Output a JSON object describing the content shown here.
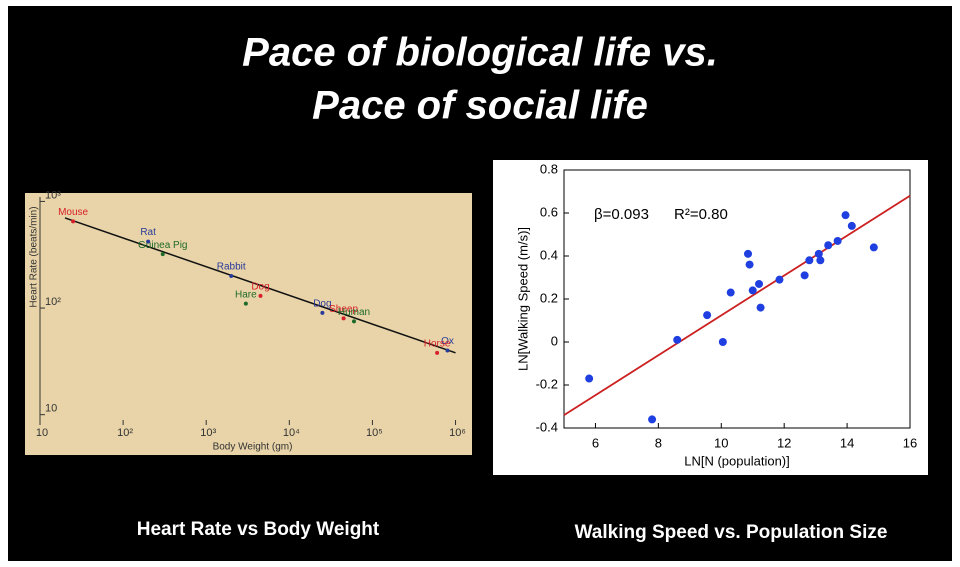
{
  "title": [
    "Pace of biological life vs.",
    "Pace of social life"
  ],
  "chart_data": [
    {
      "type": "scatter",
      "caption": "Heart Rate vs Body Weight",
      "xlabel": "Body Weight (gm)",
      "ylabel": "Heart Rate (beats/min)",
      "log_x": true,
      "log_y": true,
      "labels": [
        "Mouse",
        "Rat",
        "Guinea Pig",
        "Rabbit",
        "Dog",
        "Hare",
        "Dog",
        "Sheep",
        "Human",
        "Ox",
        "Horse"
      ],
      "x": [
        25,
        200,
        300,
        2000,
        4500,
        3000,
        25000,
        45000,
        60000,
        800000,
        600000
      ],
      "y": [
        650,
        420,
        320,
        200,
        130,
        110,
        90,
        80,
        75,
        40,
        38
      ],
      "colors": [
        "#d8202a",
        "#2a3a9a",
        "#1f6a2a",
        "#2a3a9a",
        "#d8202a",
        "#1f6a2a",
        "#2a3a9a",
        "#d8202a",
        "#1f6a2a",
        "#2a3a9a",
        "#d8202a"
      ],
      "trend": {
        "x": [
          20,
          1000000
        ],
        "y": [
          700,
          38
        ]
      },
      "trend_color": "#111",
      "xlim": [
        10,
        1300000
      ],
      "ylim": [
        8,
        1100
      ],
      "xticks": [
        {
          "value": 10,
          "label": "10"
        },
        {
          "value": 100,
          "label": "10²"
        },
        {
          "value": 1000,
          "label": "10³"
        },
        {
          "value": 10000,
          "label": "10⁴"
        },
        {
          "value": 100000,
          "label": "10⁵"
        },
        {
          "value": 1000000,
          "label": "10⁶"
        }
      ],
      "yticks": [
        {
          "value": 10,
          "label": "10"
        },
        {
          "value": 100,
          "label": "10²"
        },
        {
          "value": 1000,
          "label": "10³"
        }
      ]
    },
    {
      "type": "scatter",
      "caption": "Walking Speed vs. Population Size",
      "xlabel": "LN[N (population)]",
      "ylabel": "LN[Walking Speed (m/s)]",
      "annotations": [
        "β=0.093",
        "R²=0.80"
      ],
      "color": "#1f3fe0",
      "x": [
        5.8,
        7.8,
        8.6,
        9.55,
        10.05,
        10.3,
        10.85,
        10.9,
        11.0,
        11.2,
        11.25,
        11.85,
        12.65,
        12.8,
        13.1,
        13.15,
        13.4,
        13.7,
        13.95,
        14.15,
        14.85
      ],
      "y": [
        -0.17,
        -0.36,
        0.01,
        0.125,
        0.0,
        0.23,
        0.41,
        0.36,
        0.24,
        0.27,
        0.16,
        0.29,
        0.31,
        0.38,
        0.41,
        0.38,
        0.45,
        0.47,
        0.59,
        0.54,
        0.44
      ],
      "trend": {
        "x": [
          5,
          16
        ],
        "y": [
          -0.34,
          0.68
        ]
      },
      "trend_color": "#cc2020",
      "xlim": [
        5,
        16
      ],
      "ylim": [
        -0.4,
        0.8
      ],
      "xticks": [
        6,
        8,
        10,
        12,
        14,
        16
      ],
      "yticks": [
        -0.4,
        -0.2,
        0,
        0.2,
        0.4,
        0.6,
        0.8
      ]
    }
  ]
}
